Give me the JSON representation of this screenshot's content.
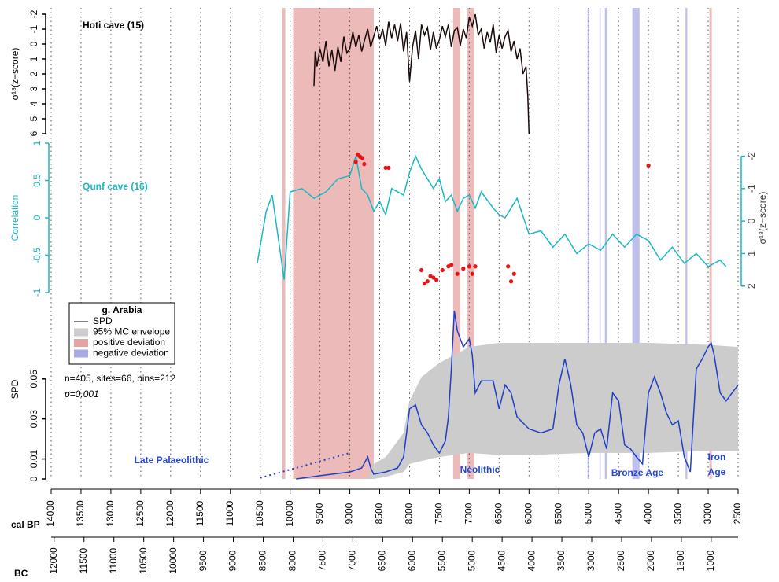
{
  "chart_data": [
    {
      "type": "line",
      "title": "Hoti cave (15)",
      "ylabel": "σ¹⁸(z−score)",
      "xlim": [
        14000,
        2500
      ],
      "ylim": [
        6,
        -2
      ],
      "yticks": [
        -2,
        -1,
        0,
        1,
        2,
        3,
        4,
        5,
        6
      ],
      "series": [
        {
          "color": "#1a0a0a",
          "x": [
            9600,
            9580,
            9550,
            9500,
            9450,
            9400,
            9350,
            9300,
            9250,
            9200,
            9150,
            9100,
            9050,
            9000,
            8950,
            8900,
            8850,
            8800,
            8750,
            8700,
            8650,
            8600,
            8550,
            8500,
            8450,
            8400,
            8350,
            8300,
            8250,
            8200,
            8150,
            8100,
            8050,
            8000,
            7950,
            7900,
            7850,
            7800,
            7750,
            7700,
            7650,
            7600,
            7550,
            7500,
            7450,
            7400,
            7350,
            7300,
            7250,
            7200,
            7150,
            7100,
            7050,
            7000,
            6950,
            6900,
            6850,
            6800,
            6750,
            6700,
            6650,
            6600,
            6550,
            6500,
            6450,
            6400,
            6350,
            6300,
            6250,
            6200,
            6150,
            6100,
            6050,
            6020,
            6000
          ],
          "values": [
            2.8,
            0.5,
            1.5,
            0.3,
            1.2,
            -0.2,
            1.5,
            0.4,
            1.8,
            0.2,
            1.2,
            -0.5,
            0.6,
            0.3,
            -0.8,
            0.2,
            -0.6,
            0.5,
            -0.3,
            -1.0,
            0.2,
            -0.5,
            -1.2,
            -0.3,
            -1.0,
            0.1,
            -1.5,
            -0.4,
            -1.3,
            -0.2,
            -1.4,
            0.5,
            -0.8,
            2.5,
            0.2,
            -0.9,
            1.0,
            -1.3,
            -0.6,
            -1.1,
            0.4,
            -0.8,
            0.3,
            -0.3,
            -1.2,
            -0.5,
            -1.3,
            0.2,
            -0.9,
            -1.1,
            0.1,
            -1.0,
            -0.4,
            -1.8,
            -1.2,
            -2.0,
            -0.6,
            -1.0,
            0.3,
            -0.8,
            -0.1,
            -1.3,
            0.6,
            -0.6,
            0.3,
            -0.5,
            -0.9,
            0.5,
            -0.2,
            1.0,
            0.3,
            2.0,
            1.5,
            3.5,
            6.0
          ]
        }
      ]
    },
    {
      "type": "line",
      "title": "Qunf cave (16)",
      "ylabel": "Correlation",
      "y2label": "σ¹⁸(z−score)",
      "axis_color": "#1ab8c4",
      "xlim": [
        14000,
        2500
      ],
      "ylim": [
        -1,
        1
      ],
      "yticks": [
        -1,
        -0.5,
        0,
        0.5,
        1
      ],
      "y2lim": [
        2.2,
        -2.4
      ],
      "y2ticks": [
        2,
        1,
        0,
        -1,
        -2
      ],
      "series": [
        {
          "color": "#1ab8c4",
          "axis": "y2",
          "x": [
            10550,
            10400,
            10300,
            10100,
            10000,
            9800,
            9600,
            9400,
            9200,
            9000,
            8900,
            8800,
            8700,
            8600,
            8500,
            8400,
            8300,
            8100,
            8000,
            7900,
            7800,
            7600,
            7500,
            7400,
            7300,
            7200,
            7100,
            7000,
            6900,
            6800,
            6600,
            6500,
            6400,
            6200,
            6000,
            5800,
            5600,
            5400,
            5200,
            5000,
            4800,
            4600,
            4400,
            4200,
            4000,
            3800,
            3600,
            3400,
            3200,
            3000,
            2800,
            2700
          ],
          "values": [
            1.3,
            -0.3,
            -0.8,
            1.8,
            -0.9,
            -1.0,
            -0.7,
            -0.9,
            -1.3,
            -1.4,
            -2.0,
            -1.0,
            -0.8,
            -0.3,
            -0.6,
            -0.2,
            -1.0,
            -0.8,
            -1.5,
            -2.0,
            -1.6,
            -1.0,
            -1.3,
            -0.6,
            -0.8,
            -0.3,
            -0.7,
            -0.8,
            -0.4,
            -0.9,
            -0.4,
            -0.2,
            -0.1,
            -0.7,
            0.4,
            0.3,
            0.8,
            0.4,
            1.0,
            0.7,
            0.9,
            0.4,
            0.8,
            0.4,
            0.6,
            1.2,
            0.8,
            1.3,
            1.0,
            1.4,
            1.2,
            1.4
          ]
        },
        {
          "type": "scatter",
          "color": "#ee1111",
          "x": [
            8900,
            8870,
            8830,
            8790,
            8760,
            8400,
            8350,
            7800,
            7750,
            7700,
            7650,
            7600,
            7550,
            7450,
            7350,
            7300,
            7200,
            7100,
            7000,
            6950,
            6900,
            6350,
            6300,
            6250,
            4000
          ],
          "values": [
            0.75,
            0.85,
            0.82,
            0.8,
            0.72,
            0.67,
            0.67,
            -0.7,
            -0.88,
            -0.85,
            -0.78,
            -0.8,
            -0.83,
            -0.7,
            -0.65,
            -0.63,
            -0.75,
            -0.68,
            -0.65,
            -0.75,
            -0.65,
            -0.65,
            -0.85,
            -0.75,
            0.7
          ]
        }
      ]
    },
    {
      "type": "line",
      "ylabel": "SPD",
      "xlabel": "cal BP",
      "x2label": "BC",
      "grid": true,
      "xlim": [
        14000,
        2500
      ],
      "xticks": [
        14000,
        13500,
        13000,
        12500,
        12000,
        11500,
        11000,
        10500,
        10000,
        9500,
        9000,
        8500,
        8000,
        7500,
        7000,
        6500,
        6000,
        5500,
        5000,
        4500,
        4000,
        3500,
        3000,
        2500
      ],
      "x2lim": [
        12050,
        550
      ],
      "x2ticks": [
        12000,
        11500,
        11000,
        10500,
        10000,
        9500,
        9000,
        8500,
        8000,
        7500,
        7000,
        6500,
        6000,
        5500,
        5000,
        4500,
        4000,
        3500,
        3000,
        2500,
        2000,
        1500,
        1000
      ],
      "ylim": [
        0,
        0.09
      ],
      "yticks": [
        0,
        0.01,
        0.03,
        0.05
      ],
      "legend": {
        "title": "g. Arabia",
        "position": "upper left"
      },
      "stats": [
        "n=405, sites=66, bins=212",
        "p=0.001"
      ],
      "annotations": [
        "Late Palaeolithic",
        "Neolithic",
        "Bronze Age",
        "Iron",
        "Age"
      ],
      "bands": [
        {
          "name": "positive deviation",
          "color": "#e7a3a3",
          "ranges": [
            [
              10130,
              10080
            ],
            [
              9950,
              8600
            ],
            [
              7270,
              7150
            ],
            [
              7030,
              6920
            ],
            [
              2980,
              2940
            ]
          ]
        },
        {
          "name": "negative deviation",
          "color": "#a9a9e6",
          "ranges": [
            [
              5020,
              4990
            ],
            [
              4820,
              4800
            ],
            [
              4730,
              4700
            ],
            [
              4270,
              4150
            ],
            [
              3380,
              3350
            ]
          ]
        }
      ],
      "envelope": {
        "name": "95% MC envelope",
        "color": "#cccccc",
        "x": [
          8700,
          8600,
          8400,
          8100,
          8000,
          7800,
          7500,
          7000,
          6500,
          6000,
          5000,
          4000,
          3000,
          2500
        ],
        "upper": [
          0,
          0.0075,
          0.011,
          0.023,
          0.039,
          0.051,
          0.058,
          0.066,
          0.068,
          0.068,
          0.068,
          0.068,
          0.067,
          0.066
        ],
        "lower": [
          0,
          0,
          0.001,
          0.0035,
          0.0075,
          0.009,
          0.011,
          0.013,
          0.012,
          0.012,
          0.013,
          0.013,
          0.014,
          0.014
        ]
      },
      "series": [
        {
          "name": "SPD",
          "color": "#1f3fc8",
          "x": [
            9900,
            9500,
            9000,
            8800,
            8700,
            8650,
            8600,
            8400,
            8200,
            8100,
            8000,
            7900,
            7800,
            7700,
            7600,
            7500,
            7400,
            7350,
            7300,
            7250,
            7200,
            7100,
            7000,
            6950,
            6900,
            6800,
            6600,
            6500,
            6400,
            6300,
            6200,
            6000,
            5800,
            5600,
            5500,
            5400,
            5300,
            5200,
            5100,
            5000,
            4900,
            4800,
            4700,
            4600,
            4500,
            4400,
            4300,
            4200,
            4100,
            4000,
            3900,
            3800,
            3700,
            3600,
            3500,
            3400,
            3300,
            3200,
            3100,
            3000,
            2950,
            2900,
            2800,
            2700,
            2600,
            2500
          ],
          "values": [
            0,
            0.0016,
            0.0035,
            0.0055,
            0.011,
            0.0055,
            0.0024,
            0.0035,
            0.0055,
            0.011,
            0.035,
            0.037,
            0.027,
            0.023,
            0.017,
            0.013,
            0.019,
            0.031,
            0.055,
            0.084,
            0.074,
            0.066,
            0.07,
            0.062,
            0.043,
            0.049,
            0.049,
            0.035,
            0.047,
            0.043,
            0.031,
            0.025,
            0.023,
            0.025,
            0.047,
            0.06,
            0.047,
            0.027,
            0.023,
            0.011,
            0.023,
            0.025,
            0.015,
            0.043,
            0.039,
            0.017,
            0.015,
            0.011,
            0.0075,
            0.043,
            0.051,
            0.043,
            0.033,
            0.027,
            0.029,
            0.011,
            0.0035,
            0.055,
            0.06,
            0.066,
            0.068,
            0.062,
            0.043,
            0.039,
            0.043,
            0.047
          ]
        },
        {
          "color": "#1f3fc8",
          "dash": true,
          "x": [
            10500,
            9000
          ],
          "values": [
            0.0005,
            0.013
          ]
        }
      ]
    }
  ]
}
